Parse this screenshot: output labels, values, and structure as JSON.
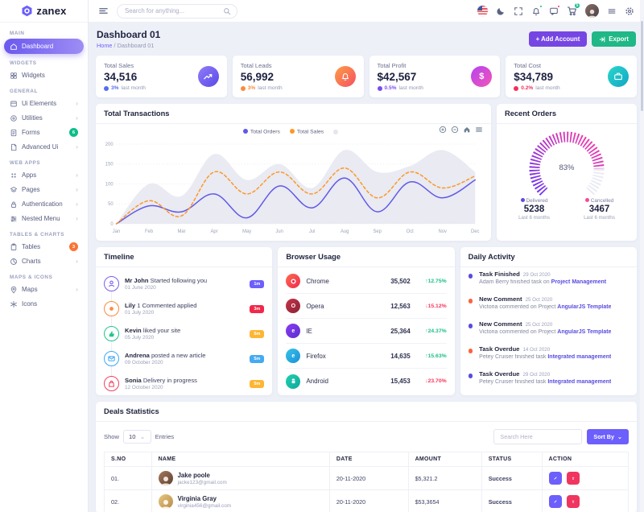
{
  "colors": {
    "primary": "#6c5ffc",
    "green": "#1bbd8a",
    "red": "#f5365c",
    "orange": "#fd8a3d",
    "yellow": "#fdb632",
    "blue": "#45aaf2",
    "pink": "#f24b9b",
    "chart_orders": "#6058e6",
    "chart_sales": "#fd9726",
    "chart_area": "#e9eaf2"
  },
  "navbar": {
    "search_placeholder": "Search for anything...",
    "cart_count": "5"
  },
  "sidebar": {
    "logo": "zanex",
    "sec_main": "MAIN",
    "sec_widgets": "WIDGETS",
    "sec_general": "GENERAL",
    "sec_webapps": "WEB APPS",
    "sec_tables": "TABLES & CHARTS",
    "sec_maps": "MAPS & ICONS",
    "items": [
      {
        "label": "Dashboard"
      },
      {
        "label": "Widgets"
      },
      {
        "label": "Ui Elements"
      },
      {
        "label": "Utilities"
      },
      {
        "label": "Forms",
        "badge": "6"
      },
      {
        "label": "Advanced Ui"
      },
      {
        "label": "Apps"
      },
      {
        "label": "Pages"
      },
      {
        "label": "Authentication"
      },
      {
        "label": "Nested Menu"
      },
      {
        "label": "Tables",
        "badge": "3"
      },
      {
        "label": "Charts"
      },
      {
        "label": "Maps"
      },
      {
        "label": "Icons"
      }
    ]
  },
  "page": {
    "title": "Dashboard 01",
    "home": "Home",
    "current": "Dashboard 01",
    "add_account": "+ Add Account",
    "export": "Export"
  },
  "stats": [
    {
      "label": "Total Sales",
      "value": "34,516",
      "change": "3%",
      "period": "last month"
    },
    {
      "label": "Total Leads",
      "value": "56,992",
      "change": "3%",
      "period": "last month"
    },
    {
      "label": "Total Profit",
      "value": "$42,567",
      "change": "0.5%",
      "period": "last month"
    },
    {
      "label": "Total Cost",
      "value": "$34,789",
      "change": "0.2%",
      "period": "last month"
    }
  ],
  "transactions": {
    "title": "Total Transactions",
    "legend_orders": "Total Orders",
    "legend_sales": "Total Sales"
  },
  "chart_data": [
    {
      "type": "line",
      "title": "Total Transactions",
      "x": [
        "Jan",
        "Feb",
        "Mar",
        "Apr",
        "May",
        "Jun",
        "Jul",
        "Aug",
        "Sep",
        "Oct",
        "Nov",
        "Dec"
      ],
      "series": [
        {
          "name": "Background",
          "kind": "area",
          "color": "#e9eaf2",
          "values": [
            0,
            100,
            70,
            175,
            110,
            150,
            90,
            185,
            130,
            145,
            185,
            130
          ]
        },
        {
          "name": "Total Orders",
          "kind": "line",
          "color": "#6058e6",
          "values": [
            0,
            45,
            30,
            75,
            15,
            95,
            40,
            115,
            30,
            105,
            65,
            110
          ]
        },
        {
          "name": "Total Sales",
          "kind": "line",
          "dashed": true,
          "color": "#fd9726",
          "values": [
            0,
            58,
            20,
            130,
            75,
            130,
            75,
            140,
            65,
            130,
            90,
            120
          ]
        }
      ],
      "ylim": [
        0,
        200
      ],
      "yticks": [
        0,
        50,
        100,
        150,
        200
      ],
      "legend_position": "top",
      "grid": "horizontal-dotted"
    },
    {
      "type": "gauge",
      "percent": 83,
      "percent_label": "83%",
      "segments": [
        {
          "label": "Delivered",
          "value": 5238
        },
        {
          "label": "Cancelled",
          "value": 3467
        }
      ],
      "period": "Last 6 months"
    }
  ],
  "recent_orders": {
    "title": "Recent Orders",
    "delivered_label": "Delivered",
    "delivered_value": "5238",
    "cancelled_label": "Cancelled",
    "cancelled_value": "3467",
    "period1": "Last 6 months",
    "period2": "Last 6 months"
  },
  "timeline": {
    "title": "Timeline",
    "items": [
      {
        "name": "Mr John",
        "text": "Started following you",
        "date": "01 June 2020",
        "badge": "1m"
      },
      {
        "name": "Lily",
        "text": "1 Commented applied",
        "date": "01 July 2020",
        "badge": "3m"
      },
      {
        "name": "Kevin",
        "text": "liked your site",
        "date": "05 July 2020",
        "badge": "5m"
      },
      {
        "name": "Andrena",
        "text": "posted a new article",
        "date": "09 October 2020",
        "badge": "5m"
      },
      {
        "name": "Sonia",
        "text": "Delivery in progress",
        "date": "12 October 2020",
        "badge": "5m"
      }
    ]
  },
  "browsers": {
    "title": "Browser Usage",
    "items": [
      {
        "name": "Chrome",
        "value": "35,502",
        "arrow": "↑",
        "change": "12.75%",
        "direction": "up"
      },
      {
        "name": "Opera",
        "value": "12,563",
        "arrow": "↓",
        "change": "15.12%",
        "direction": "down"
      },
      {
        "name": "IE",
        "value": "25,364",
        "arrow": "↑",
        "change": "24.37%",
        "direction": "up"
      },
      {
        "name": "Firefox",
        "value": "14,635",
        "arrow": "↑",
        "change": "15.63%",
        "direction": "up"
      },
      {
        "name": "Android",
        "value": "15,453",
        "arrow": "↓",
        "change": "23.70%",
        "direction": "down"
      }
    ]
  },
  "activity": {
    "title": "Daily Activity",
    "items": [
      {
        "title": "Task Finished",
        "date": "29 Oct 2020",
        "text": "Adam Berry finished task on ",
        "link": "Project Management"
      },
      {
        "title": "New Comment",
        "date": "25 Oct 2020",
        "text": "Victoria commented on Project ",
        "link": "AngularJS Template"
      },
      {
        "title": "New Comment",
        "date": "25 Oct 2020",
        "text": "Victoria commented on Project ",
        "link": "AngularJS Template"
      },
      {
        "title": "Task Overdue",
        "date": "14 Oct 2020",
        "text": "Petey Cruiser finished task ",
        "link": "Integrated management"
      },
      {
        "title": "Task Overdue",
        "date": "29 Oct 2020",
        "text": "Petey Cruiser finished task ",
        "link": "Integrated management"
      }
    ]
  },
  "deals": {
    "title": "Deals Statistics",
    "show_label": "Show",
    "entries_value": "10",
    "entries_label": "Entries",
    "search_placeholder": "Search Here",
    "sort_label": "Sort By",
    "headers": [
      "S.NO",
      "NAME",
      "DATE",
      "AMOUNT",
      "STATUS",
      "ACTION"
    ],
    "rows": [
      {
        "sno": "01.",
        "name": "Jake poole",
        "email": "jacke123@gmail.com",
        "date": "20-11-2020",
        "amount": "$5,321.2",
        "status": "Success"
      },
      {
        "sno": "02.",
        "name": "Virginia Gray",
        "email": "virginia456@gmail.com",
        "date": "20-11-2020",
        "amount": "$53,3654",
        "status": "Success"
      }
    ]
  }
}
